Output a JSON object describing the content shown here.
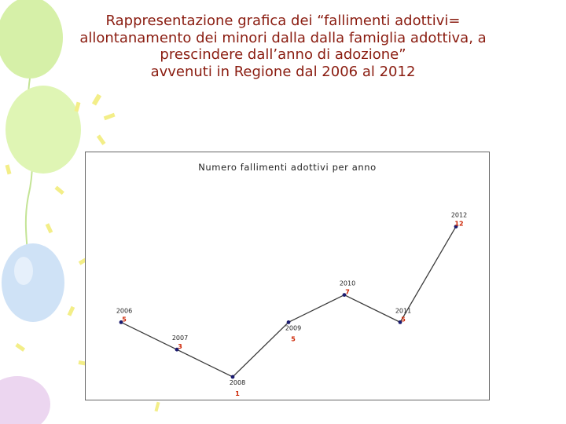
{
  "slide": {
    "title_lines": [
      "Rappresentazione grafica dei “fallimenti adottivi=",
      "allontanamento dei minori dalla dalla famiglia adottiva,  a",
      "prescindere dall’anno di adozione”",
      "avvenuti in Regione  dal 2006 al 2012"
    ]
  },
  "colors": {
    "title": "#8a1c10",
    "line": "#3b3b3b",
    "marker": "#1b1b6e",
    "value_label": "#cc2200",
    "balloon_green": "#d6f0a8",
    "balloon_blue": "#cfe2f6",
    "balloon_pink": "#ecd6f0",
    "confetti": "#f3ee88"
  },
  "chart_data": {
    "type": "line",
    "title": "Numero fallimenti adottivi per anno",
    "categories": [
      "2006",
      "2007",
      "2008",
      "2009",
      "2010",
      "2011",
      "2012"
    ],
    "values": [
      5,
      3,
      1,
      5,
      7,
      5,
      12
    ],
    "xlabel": "",
    "ylabel": "",
    "axes_visible": false,
    "grid": false,
    "legend": "none",
    "label_positions": [
      "above",
      "above",
      "below",
      "below",
      "above",
      "above",
      "above"
    ]
  }
}
